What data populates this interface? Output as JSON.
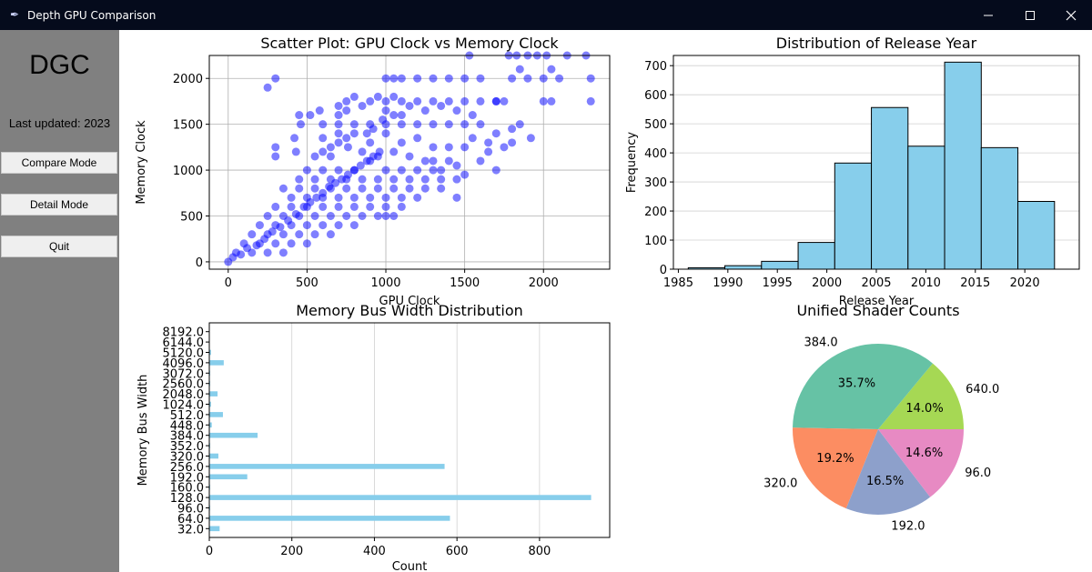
{
  "window": {
    "title": "Depth GPU Comparison",
    "icons": {
      "app": "feather-icon",
      "min": "minimize-icon",
      "max": "maximize-icon",
      "close": "close-icon"
    }
  },
  "sidebar": {
    "logo": "DGC",
    "updated": "Last updated: 2023",
    "buttons": [
      "Compare Mode",
      "Detail Mode",
      "Quit"
    ]
  },
  "chart_data": [
    {
      "type": "scatter",
      "title": "Scatter Plot: GPU Clock vs Memory Clock",
      "xlabel": "GPU Clock",
      "ylabel": "Memory Clock",
      "xlim": [
        -120,
        2420
      ],
      "ylim": [
        -80,
        2250
      ],
      "xticks": [
        0,
        500,
        1000,
        1500,
        2000
      ],
      "yticks": [
        0,
        500,
        1000,
        1500,
        2000
      ],
      "grid": true,
      "color": "#0000ff",
      "points": [
        [
          300,
          2000
        ],
        [
          250,
          1900
        ],
        [
          520,
          1600
        ],
        [
          460,
          1500
        ],
        [
          580,
          1650
        ],
        [
          700,
          1600
        ],
        [
          750,
          1750
        ],
        [
          800,
          1800
        ],
        [
          850,
          1700
        ],
        [
          900,
          1750
        ],
        [
          950,
          1800
        ],
        [
          1000,
          1750
        ],
        [
          1050,
          1800
        ],
        [
          1100,
          1750
        ],
        [
          1200,
          1750
        ],
        [
          1300,
          1750
        ],
        [
          1400,
          1750
        ],
        [
          1500,
          1750
        ],
        [
          1600,
          1750
        ],
        [
          1700,
          1750
        ],
        [
          1000,
          2000
        ],
        [
          1050,
          2000
        ],
        [
          1100,
          2000
        ],
        [
          1200,
          2000
        ],
        [
          1300,
          2000
        ],
        [
          1400,
          2000
        ],
        [
          1500,
          2000
        ],
        [
          1600,
          2000
        ],
        [
          1800,
          2000
        ],
        [
          1900,
          2000
        ],
        [
          2000,
          2000
        ],
        [
          2100,
          2000
        ],
        [
          2300,
          2000
        ],
        [
          1530,
          2250
        ],
        [
          1780,
          2250
        ],
        [
          1830,
          2250
        ],
        [
          1900,
          2250
        ],
        [
          1960,
          2250
        ],
        [
          2020,
          2250
        ],
        [
          2150,
          2250
        ],
        [
          2270,
          2250
        ],
        [
          1850,
          2100
        ],
        [
          2050,
          2100
        ],
        [
          1500,
          1500
        ],
        [
          1400,
          1500
        ],
        [
          1300,
          1500
        ],
        [
          1200,
          1500
        ],
        [
          1100,
          1500
        ],
        [
          1000,
          1500
        ],
        [
          900,
          1500
        ],
        [
          800,
          1500
        ],
        [
          700,
          1500
        ],
        [
          600,
          1500
        ],
        [
          600,
          1350
        ],
        [
          700,
          1400
        ],
        [
          800,
          1400
        ],
        [
          900,
          1300
        ],
        [
          1000,
          1400
        ],
        [
          1100,
          1300
        ],
        [
          1200,
          1350
        ],
        [
          1300,
          1250
        ],
        [
          1400,
          1250
        ],
        [
          1500,
          1250
        ],
        [
          1550,
          1350
        ],
        [
          1650,
          1200
        ],
        [
          1800,
          1300
        ],
        [
          1920,
          1350
        ],
        [
          1600,
          1100
        ],
        [
          420,
          1350
        ],
        [
          300,
          1250
        ],
        [
          300,
          1150
        ],
        [
          430,
          1200
        ],
        [
          550,
          1150
        ],
        [
          650,
          1150
        ],
        [
          760,
          1250
        ],
        [
          850,
          1200
        ],
        [
          950,
          1150
        ],
        [
          1050,
          1200
        ],
        [
          1150,
          1150
        ],
        [
          1250,
          1100
        ],
        [
          1350,
          1000
        ],
        [
          1450,
          1050
        ],
        [
          1500,
          950
        ],
        [
          1700,
          1000
        ],
        [
          900,
          1100
        ],
        [
          1000,
          1000
        ],
        [
          1100,
          1000
        ],
        [
          1200,
          1000
        ],
        [
          1300,
          1000
        ],
        [
          800,
          1000
        ],
        [
          700,
          1000
        ],
        [
          600,
          1000
        ],
        [
          500,
          1000
        ],
        [
          450,
          900
        ],
        [
          550,
          900
        ],
        [
          650,
          900
        ],
        [
          750,
          900
        ],
        [
          850,
          900
        ],
        [
          950,
          900
        ],
        [
          1050,
          900
        ],
        [
          1150,
          900
        ],
        [
          1250,
          900
        ],
        [
          1350,
          900
        ],
        [
          1450,
          900
        ],
        [
          350,
          800
        ],
        [
          450,
          800
        ],
        [
          550,
          800
        ],
        [
          650,
          800
        ],
        [
          750,
          800
        ],
        [
          850,
          800
        ],
        [
          950,
          800
        ],
        [
          1050,
          800
        ],
        [
          1150,
          800
        ],
        [
          1250,
          800
        ],
        [
          1350,
          800
        ],
        [
          1450,
          700
        ],
        [
          400,
          700
        ],
        [
          500,
          700
        ],
        [
          600,
          700
        ],
        [
          700,
          700
        ],
        [
          800,
          700
        ],
        [
          900,
          700
        ],
        [
          1000,
          700
        ],
        [
          1100,
          700
        ],
        [
          1200,
          700
        ],
        [
          300,
          600
        ],
        [
          400,
          600
        ],
        [
          500,
          600
        ],
        [
          600,
          600
        ],
        [
          700,
          600
        ],
        [
          800,
          600
        ],
        [
          900,
          600
        ],
        [
          1000,
          600
        ],
        [
          1100,
          600
        ],
        [
          250,
          500
        ],
        [
          350,
          500
        ],
        [
          450,
          500
        ],
        [
          550,
          500
        ],
        [
          650,
          500
        ],
        [
          750,
          500
        ],
        [
          850,
          500
        ],
        [
          950,
          500
        ],
        [
          1000,
          500
        ],
        [
          1050,
          500
        ],
        [
          200,
          400
        ],
        [
          300,
          400
        ],
        [
          400,
          400
        ],
        [
          500,
          400
        ],
        [
          600,
          400
        ],
        [
          700,
          400
        ],
        [
          800,
          400
        ],
        [
          150,
          300
        ],
        [
          250,
          300
        ],
        [
          350,
          300
        ],
        [
          450,
          300
        ],
        [
          550,
          300
        ],
        [
          650,
          300
        ],
        [
          100,
          200
        ],
        [
          200,
          200
        ],
        [
          300,
          200
        ],
        [
          400,
          200
        ],
        [
          500,
          200
        ],
        [
          50,
          100
        ],
        [
          150,
          100
        ],
        [
          250,
          100
        ],
        [
          350,
          100
        ],
        [
          0,
          0
        ],
        [
          30,
          50
        ],
        [
          80,
          80
        ],
        [
          120,
          150
        ],
        [
          180,
          180
        ],
        [
          230,
          250
        ],
        [
          280,
          330
        ],
        [
          330,
          380
        ],
        [
          380,
          450
        ],
        [
          430,
          520
        ],
        [
          480,
          600
        ],
        [
          520,
          650
        ],
        [
          560,
          700
        ],
        [
          600,
          750
        ],
        [
          640,
          820
        ],
        [
          680,
          860
        ],
        [
          720,
          900
        ],
        [
          760,
          950
        ],
        [
          800,
          1000
        ],
        [
          840,
          1050
        ],
        [
          880,
          1100
        ],
        [
          920,
          1150
        ],
        [
          960,
          1200
        ],
        [
          600,
          1200
        ],
        [
          650,
          1250
        ],
        [
          700,
          1300
        ],
        [
          750,
          1350
        ],
        [
          880,
          1400
        ],
        [
          920,
          1450
        ],
        [
          980,
          1550
        ],
        [
          1050,
          1600
        ],
        [
          1150,
          1700
        ],
        [
          1250,
          1650
        ],
        [
          1350,
          1700
        ],
        [
          1450,
          1650
        ],
        [
          1550,
          1600
        ],
        [
          1100,
          1600
        ],
        [
          1000,
          1650
        ],
        [
          700,
          1700
        ],
        [
          750,
          1650
        ],
        [
          450,
          1600
        ],
        [
          1600,
          1500
        ],
        [
          1700,
          1750
        ],
        [
          1750,
          1750
        ],
        [
          2000,
          1750
        ],
        [
          2050,
          1750
        ],
        [
          2300,
          1750
        ],
        [
          1850,
          1500
        ],
        [
          1800,
          1450
        ],
        [
          1700,
          1400
        ],
        [
          1650,
          1300
        ],
        [
          1750,
          1250
        ],
        [
          1400,
          1100
        ],
        [
          1300,
          1100
        ]
      ]
    },
    {
      "type": "bar",
      "title": "Distribution of Release Year",
      "xlabel": "Release Year",
      "ylabel": "Frequency",
      "xlim": [
        1984.5,
        2025.5
      ],
      "ylim": [
        0,
        735
      ],
      "xticks": [
        1985,
        1990,
        1995,
        2000,
        2005,
        2010,
        2015,
        2020
      ],
      "yticks": [
        0,
        100,
        200,
        300,
        400,
        500,
        600,
        700
      ],
      "bin_edges": [
        1986,
        1989.7,
        1993.4,
        1997.1,
        2000.8,
        2004.5,
        2008.2,
        2011.9,
        2015.6,
        2019.3,
        2023
      ],
      "values": [
        5,
        12,
        27,
        92,
        365,
        556,
        423,
        712,
        418,
        233
      ],
      "color": "#87ceeb"
    },
    {
      "type": "bar",
      "orientation": "horizontal",
      "title": "Memory Bus Width Distribution",
      "xlabel": "Count",
      "ylabel": "Memory Bus Width",
      "xlim": [
        0,
        970
      ],
      "xticks": [
        0,
        200,
        400,
        600,
        800
      ],
      "categories": [
        "32.0",
        "64.0",
        "96.0",
        "128.0",
        "160.0",
        "192.0",
        "256.0",
        "320.0",
        "352.0",
        "384.0",
        "448.0",
        "512.0",
        "1024.0",
        "2048.0",
        "2560.0",
        "3072.0",
        "4096.0",
        "5120.0",
        "6144.0",
        "8192.0"
      ],
      "values": [
        25,
        583,
        2,
        925,
        2,
        92,
        570,
        22,
        2,
        117,
        6,
        33,
        4,
        20,
        2,
        2,
        35,
        4,
        1,
        1
      ],
      "color": "#87ceeb"
    },
    {
      "type": "pie",
      "title": "Unified Shader Counts",
      "labels": [
        "640.0",
        "384.0",
        "320.0",
        "192.0",
        "96.0"
      ],
      "percents": [
        "14.0%",
        "35.7%",
        "19.2%",
        "16.5%",
        "14.6%"
      ],
      "values": [
        14.0,
        35.7,
        19.2,
        16.5,
        14.6
      ],
      "colors": [
        "#a6d854",
        "#66c2a5",
        "#fc8d62",
        "#8da0cb",
        "#e78ac3"
      ]
    }
  ]
}
